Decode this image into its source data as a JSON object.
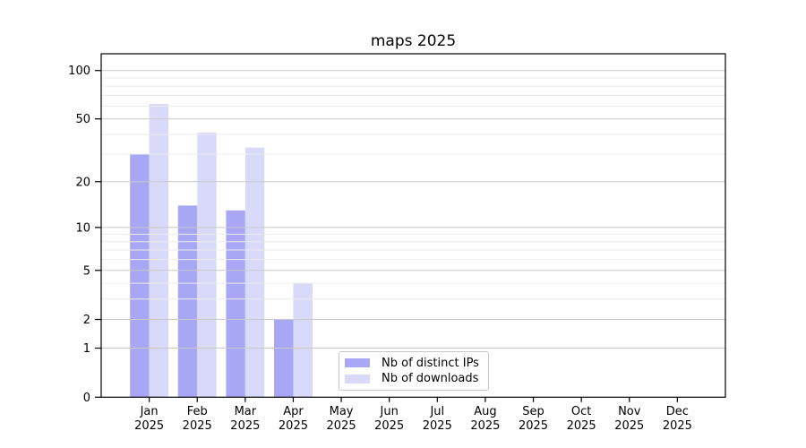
{
  "title": "maps 2025",
  "chart_data": {
    "type": "bar",
    "title": "maps 2025",
    "categories": [
      "Jan",
      "Feb",
      "Mar",
      "Apr",
      "May",
      "Jun",
      "Jul",
      "Aug",
      "Sep",
      "Oct",
      "Nov",
      "Dec"
    ],
    "year_label": "2025",
    "series": [
      {
        "name": "Nb of distinct IPs",
        "color": "#a7a7f5",
        "values": [
          30,
          14,
          13,
          2,
          0,
          0,
          0,
          0,
          0,
          0,
          0,
          0
        ]
      },
      {
        "name": "Nb of downloads",
        "color": "#d9d9fa",
        "values": [
          62,
          41,
          33,
          4,
          0,
          0,
          0,
          0,
          0,
          0,
          0,
          0
        ]
      }
    ],
    "xlabel": "",
    "ylabel": "",
    "yscale": "log1p",
    "ylim": [
      0,
      127
    ],
    "y_major_ticks": [
      0,
      1,
      2,
      5,
      10,
      20,
      50,
      100
    ],
    "y_minor_ticks": [
      3,
      4,
      6,
      7,
      8,
      9,
      30,
      40,
      60,
      70,
      80,
      90
    ],
    "grid": "horizontal, drawn above bars",
    "legend_position": "bottom-center-inside"
  },
  "legend": {
    "items": [
      {
        "label": "Nb of distinct IPs"
      },
      {
        "label": "Nb of downloads"
      }
    ]
  },
  "colors": {
    "series_ips": "#a7a7f5",
    "series_downloads": "#d9d9fa",
    "grid_major": "#c9c9c9",
    "grid_minor": "#ebebeb",
    "axis": "#000000",
    "legend_border": "#c8c8c8",
    "text": "#000000"
  }
}
